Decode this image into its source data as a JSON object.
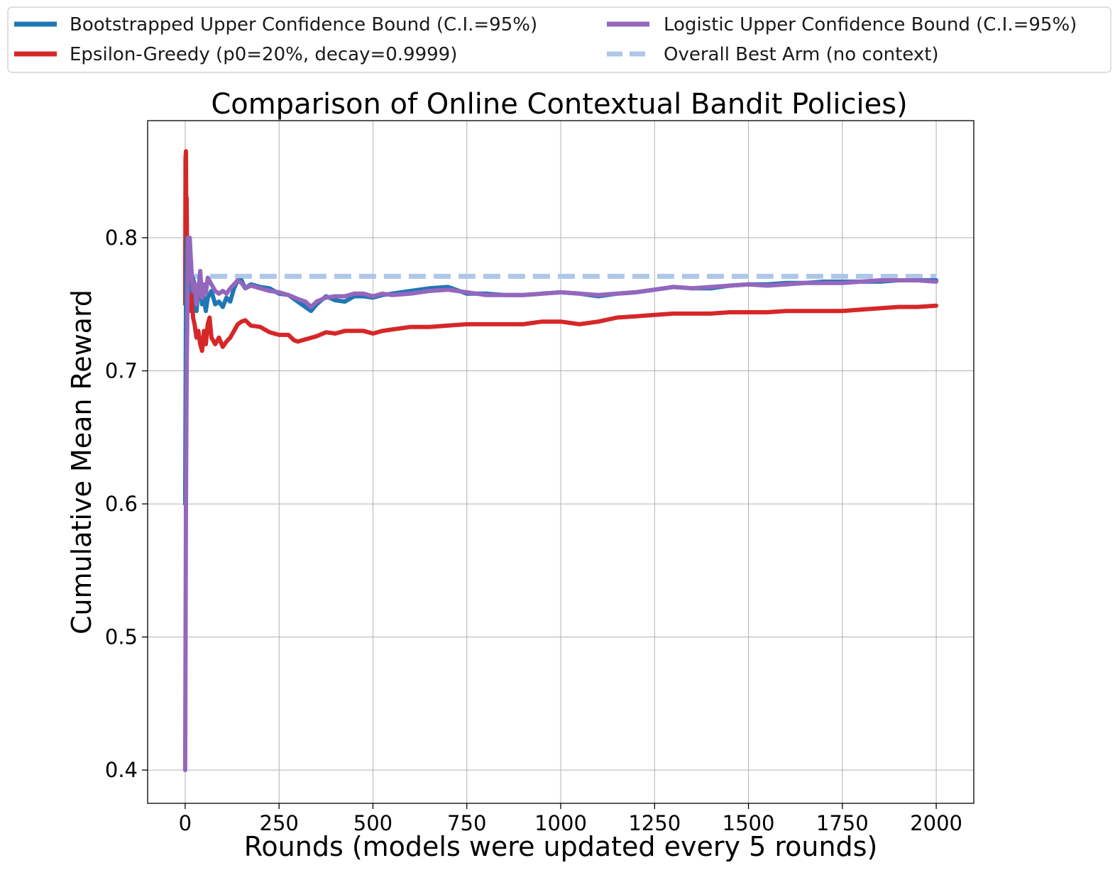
{
  "chart_data": {
    "type": "line",
    "title": "Comparison of Online Contextual Bandit Policies)",
    "xlabel": "Rounds (models were updated every 5 rounds)",
    "ylabel": "Cumulative Mean Reward",
    "xlim": [
      -100,
      2100
    ],
    "ylim": [
      0.375,
      0.888
    ],
    "xticks": [
      0,
      250,
      500,
      750,
      1000,
      1250,
      1500,
      1750,
      2000
    ],
    "xtick_labels": [
      "0",
      "250",
      "500",
      "750",
      "1000",
      "1250",
      "1500",
      "1750",
      "2000"
    ],
    "yticks": [
      0.4,
      0.5,
      0.6,
      0.7,
      0.8
    ],
    "ytick_labels": [
      "0.4",
      "0.5",
      "0.6",
      "0.7",
      "0.8"
    ],
    "grid": true,
    "legend_placement": "top, above plot, 2 columns",
    "series": [
      {
        "name": "Bootstrapped Upper Confidence Bound (C.I.=95%)",
        "color": "#1f77b4",
        "style": "solid",
        "x": [
          0,
          2,
          5,
          8,
          12,
          16,
          20,
          25,
          30,
          35,
          40,
          45,
          50,
          55,
          60,
          70,
          80,
          90,
          100,
          110,
          120,
          130,
          140,
          150,
          160,
          175,
          200,
          225,
          250,
          275,
          300,
          320,
          335,
          350,
          375,
          400,
          425,
          450,
          475,
          500,
          525,
          550,
          600,
          650,
          700,
          750,
          800,
          850,
          900,
          950,
          1000,
          1050,
          1100,
          1150,
          1200,
          1250,
          1300,
          1350,
          1400,
          1450,
          1500,
          1550,
          1600,
          1650,
          1700,
          1750,
          1800,
          1850,
          1900,
          1950,
          2000
        ],
        "values": [
          0.6,
          0.75,
          0.8,
          0.77,
          0.79,
          0.76,
          0.77,
          0.765,
          0.745,
          0.76,
          0.765,
          0.75,
          0.755,
          0.745,
          0.755,
          0.76,
          0.75,
          0.752,
          0.748,
          0.755,
          0.752,
          0.762,
          0.768,
          0.768,
          0.762,
          0.765,
          0.763,
          0.762,
          0.758,
          0.757,
          0.752,
          0.748,
          0.745,
          0.75,
          0.756,
          0.753,
          0.752,
          0.756,
          0.756,
          0.755,
          0.757,
          0.758,
          0.76,
          0.762,
          0.763,
          0.758,
          0.758,
          0.757,
          0.757,
          0.758,
          0.759,
          0.758,
          0.756,
          0.758,
          0.759,
          0.761,
          0.763,
          0.762,
          0.762,
          0.764,
          0.765,
          0.765,
          0.766,
          0.766,
          0.767,
          0.767,
          0.767,
          0.767,
          0.768,
          0.768,
          0.768
        ]
      },
      {
        "name": "Logistic Upper Confidence Bound (C.I.=95%)",
        "color": "#9467bd",
        "style": "solid",
        "x": [
          0,
          2,
          4,
          6,
          8,
          10,
          12,
          15,
          18,
          22,
          26,
          30,
          35,
          40,
          45,
          50,
          55,
          60,
          70,
          80,
          90,
          100,
          110,
          120,
          130,
          140,
          150,
          160,
          175,
          200,
          225,
          250,
          275,
          300,
          320,
          335,
          350,
          375,
          400,
          425,
          450,
          475,
          500,
          525,
          550,
          600,
          650,
          700,
          750,
          800,
          850,
          900,
          950,
          1000,
          1050,
          1100,
          1150,
          1200,
          1250,
          1300,
          1350,
          1400,
          1450,
          1500,
          1550,
          1600,
          1650,
          1700,
          1750,
          1800,
          1850,
          1900,
          1950,
          2000
        ],
        "values": [
          0.4,
          0.6,
          0.7,
          0.75,
          0.8,
          0.78,
          0.8,
          0.785,
          0.77,
          0.76,
          0.765,
          0.75,
          0.76,
          0.775,
          0.755,
          0.765,
          0.758,
          0.77,
          0.765,
          0.76,
          0.758,
          0.76,
          0.758,
          0.762,
          0.765,
          0.768,
          0.766,
          0.762,
          0.764,
          0.762,
          0.76,
          0.759,
          0.757,
          0.754,
          0.752,
          0.748,
          0.752,
          0.755,
          0.756,
          0.756,
          0.758,
          0.758,
          0.756,
          0.758,
          0.757,
          0.758,
          0.76,
          0.761,
          0.759,
          0.757,
          0.757,
          0.757,
          0.758,
          0.759,
          0.758,
          0.757,
          0.758,
          0.759,
          0.761,
          0.763,
          0.762,
          0.763,
          0.764,
          0.765,
          0.764,
          0.765,
          0.766,
          0.766,
          0.766,
          0.767,
          0.768,
          0.768,
          0.768,
          0.767
        ]
      },
      {
        "name": "Epsilon-Greedy (p0=20%, decay=0.9999)",
        "color": "#d62728",
        "style": "solid",
        "x": [
          0,
          1,
          2,
          3,
          4,
          5,
          7,
          9,
          11,
          13,
          15,
          18,
          21,
          25,
          30,
          35,
          40,
          45,
          50,
          55,
          60,
          65,
          70,
          80,
          90,
          100,
          110,
          120,
          130,
          140,
          150,
          160,
          175,
          200,
          225,
          250,
          275,
          290,
          300,
          325,
          350,
          375,
          400,
          425,
          450,
          475,
          500,
          525,
          550,
          600,
          650,
          700,
          750,
          800,
          850,
          900,
          950,
          1000,
          1050,
          1100,
          1150,
          1200,
          1250,
          1300,
          1350,
          1400,
          1450,
          1500,
          1550,
          1600,
          1650,
          1700,
          1750,
          1800,
          1850,
          1900,
          1950,
          2000
        ],
        "values": [
          0.75,
          0.86,
          0.865,
          0.8,
          0.83,
          0.78,
          0.79,
          0.77,
          0.76,
          0.75,
          0.745,
          0.76,
          0.74,
          0.735,
          0.725,
          0.73,
          0.72,
          0.715,
          0.73,
          0.72,
          0.735,
          0.74,
          0.725,
          0.72,
          0.725,
          0.718,
          0.722,
          0.725,
          0.73,
          0.735,
          0.737,
          0.738,
          0.734,
          0.733,
          0.729,
          0.727,
          0.727,
          0.723,
          0.722,
          0.724,
          0.726,
          0.729,
          0.728,
          0.73,
          0.73,
          0.73,
          0.728,
          0.73,
          0.731,
          0.733,
          0.733,
          0.734,
          0.735,
          0.735,
          0.735,
          0.735,
          0.737,
          0.737,
          0.735,
          0.737,
          0.74,
          0.741,
          0.742,
          0.743,
          0.743,
          0.743,
          0.744,
          0.744,
          0.744,
          0.745,
          0.745,
          0.745,
          0.745,
          0.746,
          0.747,
          0.748,
          0.748,
          0.749
        ]
      },
      {
        "name": "Overall Best Arm (no context)",
        "color": "#aec7e8",
        "style": "dashed",
        "x": [
          0,
          2000
        ],
        "values": [
          0.771,
          0.771
        ]
      }
    ]
  }
}
